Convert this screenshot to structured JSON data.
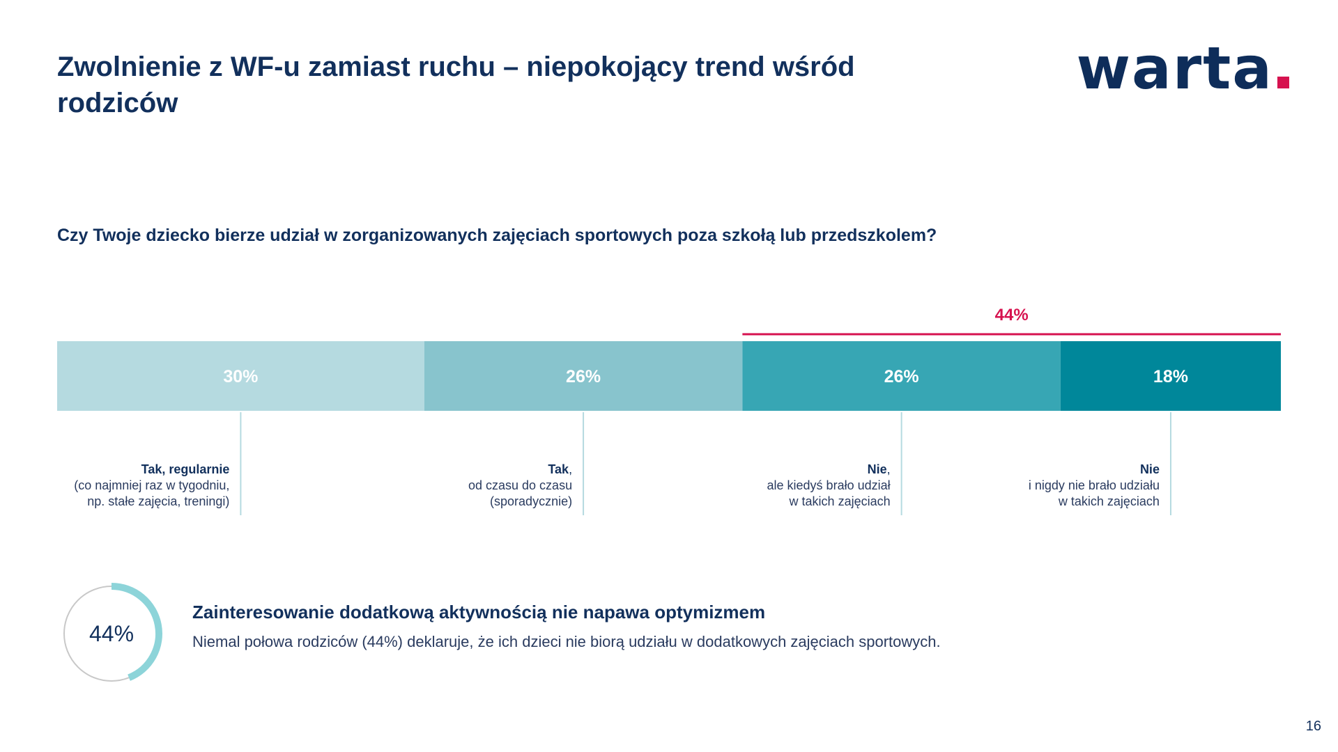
{
  "page": {
    "title": "Zwolnienie z WF-u zamiast ruchu – niepokojący trend wśród rodziców",
    "logo_text": "warta",
    "accent_color": "#d6124f",
    "question": "Czy Twoje dziecko bierze udział w zorganizowanych zajęciach sportowych poza szkołą lub przedszkolem?",
    "page_number": "16"
  },
  "chart_data": {
    "type": "bar",
    "orientation": "horizontal-stacked-100",
    "unit": "%",
    "series": [
      {
        "value": 30,
        "label": "30%",
        "color": "#b5dae0",
        "text_color": "#ffffff",
        "category_bold": "Tak, regularnie",
        "category_bold_suffix": "",
        "category_lines": [
          "(co najmniej raz w tygodniu,",
          "np. stałe zajęcia, treningi)"
        ]
      },
      {
        "value": 26,
        "label": "26%",
        "color": "#88c4cd",
        "text_color": "#ffffff",
        "category_bold": "Tak",
        "category_bold_suffix": ",",
        "category_lines": [
          "od czasu do czasu",
          "(sporadycznie)"
        ]
      },
      {
        "value": 26,
        "label": "26%",
        "color": "#37a6b4",
        "text_color": "#ffffff",
        "category_bold": "Nie",
        "category_bold_suffix": ",",
        "category_lines": [
          "ale kiedyś brało udział",
          "w takich zajęciach"
        ]
      },
      {
        "value": 18,
        "label": "18%",
        "color": "#00879a",
        "text_color": "#ffffff",
        "category_bold": "Nie",
        "category_bold_suffix": "",
        "category_lines": [
          "i nigdy nie brało udziału",
          "w takich zajęciach"
        ]
      }
    ],
    "bracket": {
      "label": "44%",
      "from_index": 2,
      "to_index": 3,
      "color": "#d6124f"
    }
  },
  "highlight": {
    "donut_label": "44%",
    "donut_value": 44,
    "donut_color": "#8dd4d9",
    "donut_track_color": "#c8c8c8",
    "title": "Zainteresowanie dodatkową aktywnością nie napawa optymizmem",
    "text": "Niemal połowa rodziców (44%) deklaruje, że ich dzieci nie biorą udziału w dodatkowych zajęciach sportowych."
  }
}
